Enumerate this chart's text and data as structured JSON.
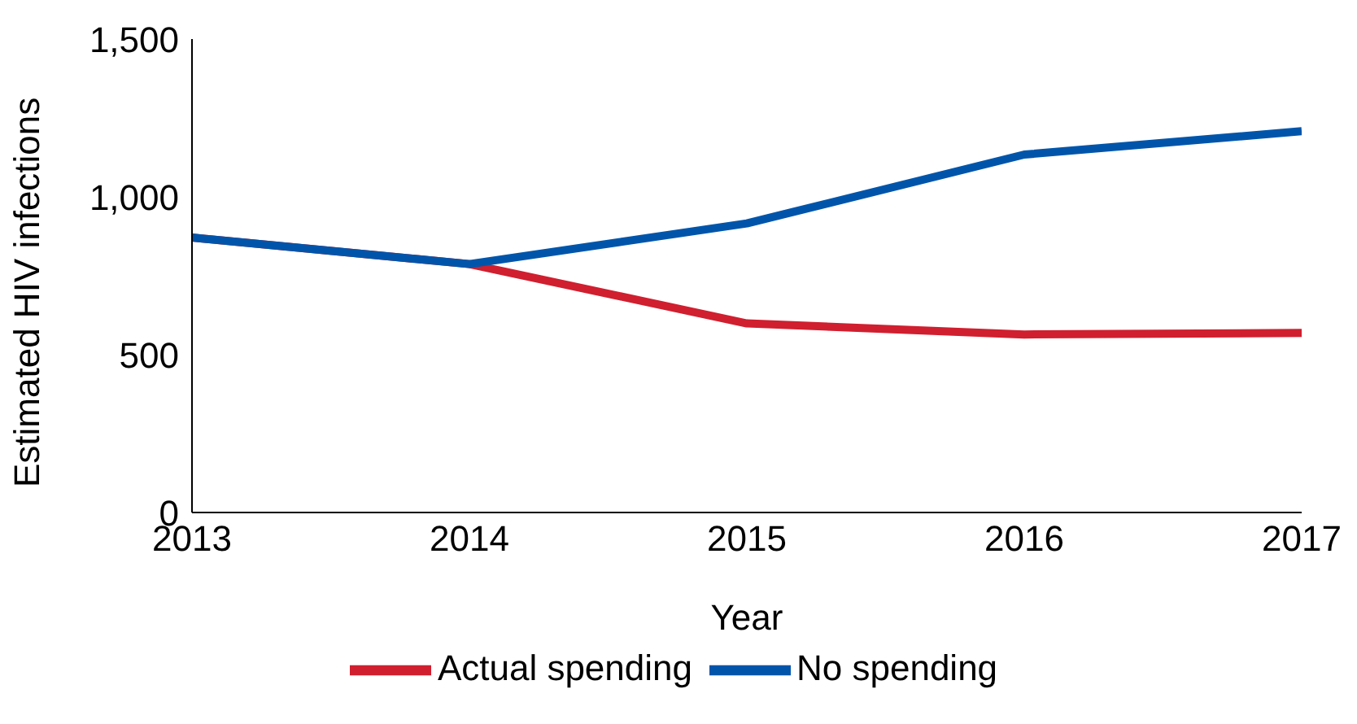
{
  "chart_data": {
    "type": "line",
    "xlabel": "Year",
    "ylabel": "Estimated HIV infections",
    "x": [
      2013,
      2014,
      2015,
      2016,
      2017
    ],
    "series": [
      {
        "name": "Actual spending",
        "color": "#d01f2f",
        "values": [
          871,
          787,
          599,
          564,
          569
        ]
      },
      {
        "name": "No spending",
        "color": "#0055aa",
        "values": [
          871,
          787,
          916,
          1134,
          1208
        ]
      }
    ],
    "xlim": [
      2013,
      2017
    ],
    "xticks": [
      2013,
      2014,
      2015,
      2016,
      2017
    ],
    "ylim": [
      0,
      1500
    ],
    "yticks": [
      {
        "value": 0,
        "label": "0"
      },
      {
        "value": 500,
        "label": "500"
      },
      {
        "value": 1000,
        "label": "1,000"
      },
      {
        "value": 1500,
        "label": "1,500"
      }
    ],
    "grid": false,
    "legend": "bottom",
    "marker": "none",
    "line_style": "solid"
  }
}
